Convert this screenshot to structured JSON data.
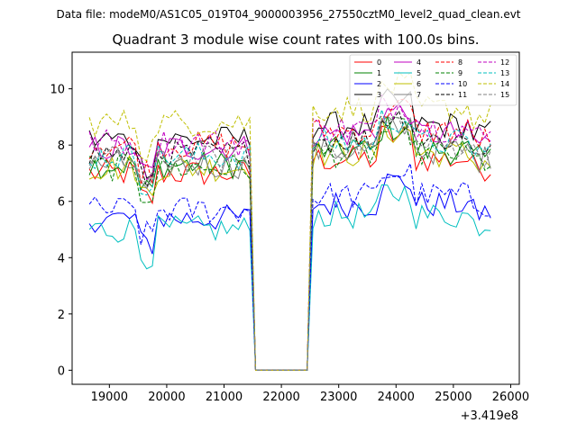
{
  "figure": {
    "suptitle": "Data file: modeM0/AS1C05_019T04_9000003956_27550cztM0_level2_quad_clean.evt",
    "title": "Quadrant 3 module wise count rates with 100.0s bins.",
    "x_offset_label": "+3.419e8"
  },
  "chart_data": {
    "type": "line",
    "title": "Quadrant 3 module wise count rates with 100.0s bins.",
    "xlabel": "",
    "ylabel": "",
    "x_offset": 341900000,
    "xlim": [
      18350,
      26150
    ],
    "ylim": [
      -0.5,
      11.3
    ],
    "xticks": [
      19000,
      20000,
      21000,
      22000,
      23000,
      24000,
      25000,
      26000
    ],
    "yticks": [
      0,
      2,
      4,
      6,
      8,
      10
    ],
    "x_start": 18650,
    "x_step": 100,
    "gap": [
      21550,
      22450
    ],
    "legend": {
      "position": "top-right",
      "ncol": 4
    },
    "series": [
      {
        "name": "0",
        "color": "#ff0000",
        "style": "solid",
        "base": 7.0
      },
      {
        "name": "1",
        "color": "#008000",
        "style": "solid",
        "base": 7.3
      },
      {
        "name": "2",
        "color": "#0000ff",
        "style": "solid",
        "base": 5.4
      },
      {
        "name": "3",
        "color": "#000000",
        "style": "solid",
        "base": 8.2
      },
      {
        "name": "4",
        "color": "#c000c0",
        "style": "solid",
        "base": 7.9
      },
      {
        "name": "5",
        "color": "#00bfbf",
        "style": "solid",
        "base": 5.0
      },
      {
        "name": "6",
        "color": "#bfbf00",
        "style": "solid",
        "base": 7.2
      },
      {
        "name": "7",
        "color": "#808080",
        "style": "solid",
        "base": 7.3
      },
      {
        "name": "8",
        "color": "#ff0000",
        "style": "dashed",
        "base": 8.0
      },
      {
        "name": "9",
        "color": "#008000",
        "style": "dashed",
        "base": 7.2
      },
      {
        "name": "10",
        "color": "#0000ff",
        "style": "dashed",
        "base": 5.7
      },
      {
        "name": "11",
        "color": "#000000",
        "style": "dashed",
        "base": 7.7
      },
      {
        "name": "12",
        "color": "#c000c0",
        "style": "dashed",
        "base": 8.1
      },
      {
        "name": "13",
        "color": "#00bfbf",
        "style": "dashed",
        "base": 7.6
      },
      {
        "name": "14",
        "color": "#bfbf00",
        "style": "dashed",
        "base": 8.8
      },
      {
        "name": "15",
        "color": "#808080",
        "style": "dashed",
        "base": 7.5
      }
    ]
  }
}
